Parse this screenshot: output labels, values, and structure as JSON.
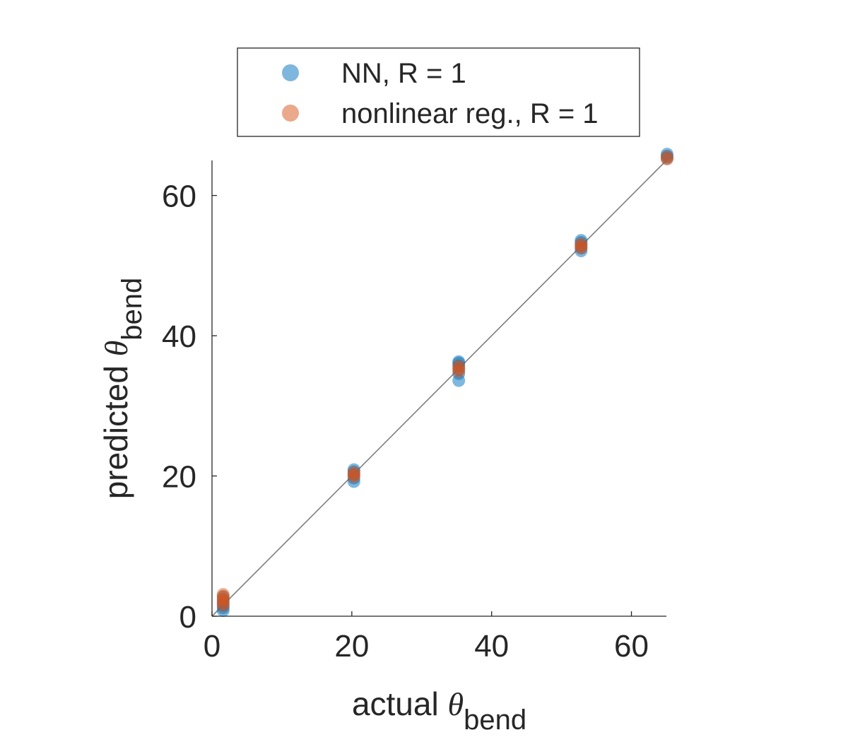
{
  "chart_data": {
    "type": "scatter",
    "xlim": [
      0,
      65
    ],
    "ylim": [
      0,
      65
    ],
    "xticks": [
      0,
      20,
      40,
      60
    ],
    "yticks": [
      0,
      20,
      40,
      60
    ],
    "xlabel": {
      "text": "actual ",
      "symbol": "θ",
      "subscript": "bend"
    },
    "ylabel": {
      "text": "predicted ",
      "symbol": "θ",
      "subscript": "bend"
    },
    "grid": false,
    "legend_position": "top-center",
    "reference_line": {
      "from": [
        0,
        0
      ],
      "to": [
        65,
        65
      ],
      "color": "#7f7f7f"
    },
    "series": [
      {
        "name": "NN, R = 1",
        "color": "#0072BD",
        "legend_color": "#7fb6dd",
        "points": [
          [
            1.6,
            0.8
          ],
          [
            1.6,
            1.2
          ],
          [
            1.6,
            1.6
          ],
          [
            1.6,
            2.0
          ],
          [
            1.6,
            2.4
          ],
          [
            1.6,
            2.8
          ],
          [
            20.3,
            19.2
          ],
          [
            20.3,
            19.7
          ],
          [
            20.3,
            20.2
          ],
          [
            20.3,
            20.6
          ],
          [
            20.3,
            20.9
          ],
          [
            35.3,
            33.6
          ],
          [
            35.3,
            34.6
          ],
          [
            35.3,
            35.2
          ],
          [
            35.3,
            35.7
          ],
          [
            35.3,
            36.1
          ],
          [
            35.3,
            36.3
          ],
          [
            52.8,
            52.1
          ],
          [
            52.8,
            52.5
          ],
          [
            52.8,
            52.9
          ],
          [
            52.8,
            53.3
          ],
          [
            52.8,
            53.6
          ],
          [
            65.1,
            65.3
          ],
          [
            65.1,
            65.6
          ],
          [
            65.1,
            65.9
          ]
        ]
      },
      {
        "name": "nonlinear reg., R = 1",
        "color": "#D95319",
        "legend_color": "#eba98c",
        "points": [
          [
            1.6,
            1.5
          ],
          [
            1.6,
            1.9
          ],
          [
            1.6,
            2.3
          ],
          [
            1.6,
            2.8
          ],
          [
            1.6,
            3.1
          ],
          [
            20.3,
            19.9
          ],
          [
            20.3,
            20.2
          ],
          [
            20.3,
            20.5
          ],
          [
            35.3,
            34.9
          ],
          [
            35.3,
            35.3
          ],
          [
            35.3,
            35.7
          ],
          [
            52.8,
            52.5
          ],
          [
            52.8,
            52.8
          ],
          [
            52.8,
            53.1
          ],
          [
            65.1,
            65.2
          ],
          [
            65.1,
            65.5
          ]
        ]
      }
    ]
  }
}
